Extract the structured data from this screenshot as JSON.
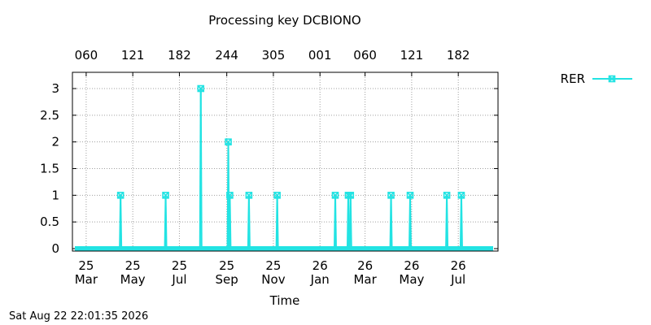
{
  "chart_data": {
    "type": "line",
    "title": "Processing key DCBIONO",
    "xlabel": "Time",
    "ylabel": "",
    "ylim": [
      0,
      3
    ],
    "yticks": [
      {
        "value": 0,
        "label": "0"
      },
      {
        "value": 0.5,
        "label": "0.5"
      },
      {
        "value": 1,
        "label": "1"
      },
      {
        "value": 1.5,
        "label": "1.5"
      },
      {
        "value": 2,
        "label": "2"
      },
      {
        "value": 2.5,
        "label": "2.5"
      },
      {
        "value": 3,
        "label": "3"
      }
    ],
    "xlim": [
      "2025-02-11",
      "2026-08-22"
    ],
    "xticks_bottom": [
      {
        "date": "2025-03-01",
        "line1": "25",
        "line2": "Mar"
      },
      {
        "date": "2025-05-01",
        "line1": "25",
        "line2": "May"
      },
      {
        "date": "2025-07-01",
        "line1": "25",
        "line2": "Jul"
      },
      {
        "date": "2025-09-01",
        "line1": "25",
        "line2": "Sep"
      },
      {
        "date": "2025-11-01",
        "line1": "25",
        "line2": "Nov"
      },
      {
        "date": "2026-01-01",
        "line1": "26",
        "line2": "Jan"
      },
      {
        "date": "2026-03-01",
        "line1": "26",
        "line2": "Mar"
      },
      {
        "date": "2026-05-01",
        "line1": "26",
        "line2": "May"
      },
      {
        "date": "2026-07-01",
        "line1": "26",
        "line2": "Jul"
      }
    ],
    "xticks_top": [
      {
        "date": "2025-03-01",
        "label": "060"
      },
      {
        "date": "2025-05-01",
        "label": "121"
      },
      {
        "date": "2025-07-01",
        "label": "182"
      },
      {
        "date": "2025-09-01",
        "label": "244"
      },
      {
        "date": "2025-11-01",
        "label": "305"
      },
      {
        "date": "2026-01-01",
        "label": "001"
      },
      {
        "date": "2026-03-01",
        "label": "060"
      },
      {
        "date": "2026-05-01",
        "label": "121"
      },
      {
        "date": "2026-07-01",
        "label": "182"
      }
    ],
    "grid": true,
    "legend": "top-right",
    "series": [
      {
        "name": "RER",
        "color": "#22e3e3",
        "marker": "x-square",
        "points": [
          {
            "x": "2025-04-15",
            "y": 1
          },
          {
            "x": "2025-06-13",
            "y": 1
          },
          {
            "x": "2025-07-29",
            "y": 3
          },
          {
            "x": "2025-09-03",
            "y": 2
          },
          {
            "x": "2025-09-05",
            "y": 1
          },
          {
            "x": "2025-09-30",
            "y": 1
          },
          {
            "x": "2025-11-06",
            "y": 1
          },
          {
            "x": "2026-01-21",
            "y": 1
          },
          {
            "x": "2026-02-07",
            "y": 1
          },
          {
            "x": "2026-02-10",
            "y": 1
          },
          {
            "x": "2026-04-04",
            "y": 1
          },
          {
            "x": "2026-04-29",
            "y": 1
          },
          {
            "x": "2026-06-16",
            "y": 1
          },
          {
            "x": "2026-07-05",
            "y": 1
          }
        ]
      }
    ]
  },
  "footer": {
    "timestamp": "Sat Aug 22 22:01:35 2026"
  }
}
